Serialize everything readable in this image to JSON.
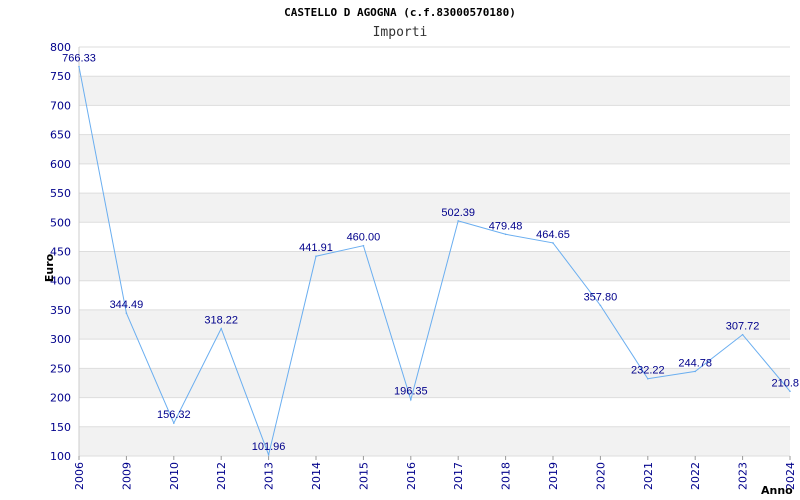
{
  "chart_data": {
    "type": "line",
    "title": "CASTELLO D AGOGNA (c.f.83000570180)",
    "subtitle": "Importi",
    "xlabel": "Anno",
    "ylabel": "Euro",
    "ylim": [
      100,
      800
    ],
    "yticks": [
      100,
      150,
      200,
      250,
      300,
      350,
      400,
      450,
      500,
      550,
      600,
      650,
      700,
      750,
      800
    ],
    "grid": "horizontal alternating bands",
    "categories": [
      "2006",
      "2009",
      "2010",
      "2012",
      "2013",
      "2014",
      "2015",
      "2016",
      "2017",
      "2018",
      "2019",
      "2020",
      "2021",
      "2022",
      "2023",
      "2024"
    ],
    "series": [
      {
        "values": [
          766.33,
          344.49,
          156.32,
          318.22,
          101.96,
          441.91,
          460.0,
          196.35,
          502.39,
          479.48,
          464.65,
          357.8,
          232.22,
          244.78,
          307.72,
          210.8
        ],
        "labels": [
          "766.33",
          "344.49",
          "156.32",
          "318.22",
          "101.96",
          "441.91",
          "460.00",
          "196.35",
          "502.39",
          "479.48",
          "464.65",
          "357.80",
          "232.22",
          "244.78",
          "307.72",
          "210.8"
        ]
      }
    ],
    "colors": {
      "line": "#6aaef0",
      "band": "#f2f2f2",
      "gridline": "#dddddd",
      "text": "#00008b"
    }
  }
}
